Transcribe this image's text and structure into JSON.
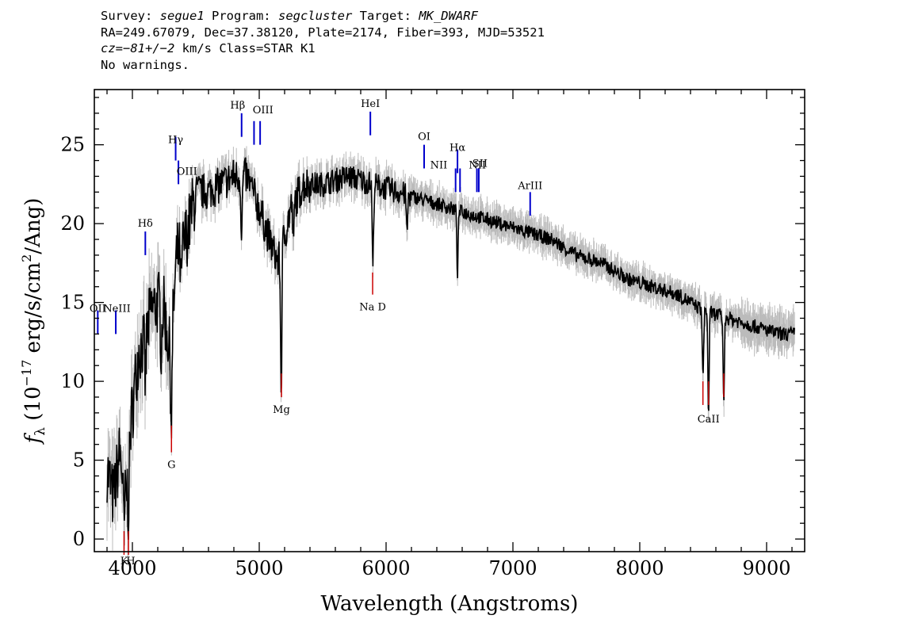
{
  "header": {
    "line1": {
      "survey_label": "Survey: ",
      "survey_value": "segue1",
      "program_label": " Program: ",
      "program_value": "segcluster",
      "target_label": " Target: ",
      "target_value": "MK_DWARF"
    },
    "line2": "RA=249.67079, Dec=37.38120, Plate=2174, Fiber=393, MJD=53521",
    "line3": {
      "cz_label": "cz=",
      "cz_value": "−81+/−2",
      "cz_suffix": " km/s Class=STAR K1"
    },
    "line4": "No warnings."
  },
  "chart_data": {
    "type": "line",
    "xlabel": "Wavelength (Angstroms)",
    "ylabel_prefix": "f",
    "ylabel_sub": "λ",
    "ylabel_rest": " (10",
    "ylabel_exp": "−17",
    "ylabel_tail": " erg/s/cm",
    "ylabel_exp2": "2",
    "ylabel_end": "/Ang)",
    "xlim": [
      3700,
      9300
    ],
    "ylim": [
      -0.8,
      28.5
    ],
    "xticks": [
      4000,
      5000,
      6000,
      7000,
      8000,
      9000
    ],
    "yticks": [
      0,
      5,
      10,
      15,
      20,
      25
    ],
    "colors": {
      "flux": "#000000",
      "error": "#bbbbbb",
      "emission": "#0000cc",
      "absorption": "#cc0000"
    },
    "spectrum_anchors": [
      [
        3800,
        4.5
      ],
      [
        3850,
        2.5
      ],
      [
        3900,
        5.5
      ],
      [
        3950,
        2.5
      ],
      [
        3990,
        7.5
      ],
      [
        4050,
        12.0
      ],
      [
        4100,
        12.5
      ],
      [
        4150,
        14.5
      ],
      [
        4200,
        15.0
      ],
      [
        4250,
        14.5
      ],
      [
        4300,
        11.5
      ],
      [
        4350,
        18.0
      ],
      [
        4400,
        18.5
      ],
      [
        4450,
        20.0
      ],
      [
        4500,
        22.0
      ],
      [
        4600,
        22.0
      ],
      [
        4700,
        22.5
      ],
      [
        4800,
        23.0
      ],
      [
        4900,
        23.0
      ],
      [
        5000,
        21.0
      ],
      [
        5100,
        18.5
      ],
      [
        5150,
        17.5
      ],
      [
        5250,
        21.0
      ],
      [
        5350,
        22.5
      ],
      [
        5500,
        22.5
      ],
      [
        5700,
        23.0
      ],
      [
        5900,
        22.5
      ],
      [
        6100,
        22.0
      ],
      [
        6300,
        21.5
      ],
      [
        6500,
        21.0
      ],
      [
        6700,
        20.5
      ],
      [
        6900,
        20.0
      ],
      [
        7100,
        19.5
      ],
      [
        7300,
        19.0
      ],
      [
        7500,
        18.0
      ],
      [
        7700,
        17.5
      ],
      [
        7900,
        16.5
      ],
      [
        8100,
        16.0
      ],
      [
        8300,
        15.5
      ],
      [
        8500,
        14.5
      ],
      [
        8700,
        14.0
      ],
      [
        8900,
        13.5
      ],
      [
        9100,
        13.0
      ],
      [
        9200,
        13.0
      ]
    ],
    "absorption_dips": [
      [
        3934,
        -3.0
      ],
      [
        3969,
        -3.0
      ],
      [
        4102,
        -2.5
      ],
      [
        4227,
        -2.5
      ],
      [
        4308,
        -5.0
      ],
      [
        4384,
        -2.5
      ],
      [
        4861,
        -4.0
      ],
      [
        5173,
        -9.0
      ],
      [
        5270,
        -2.5
      ],
      [
        5896,
        -5.5
      ],
      [
        6165,
        -2.5
      ],
      [
        6563,
        -4.0
      ],
      [
        8498,
        -4.5
      ],
      [
        8542,
        -6.5
      ],
      [
        8662,
        -5.5
      ]
    ],
    "emission_lines": [
      {
        "label": "OII",
        "wave": 3727,
        "y": 13.0,
        "lx": 3727,
        "ly": 14.4
      },
      {
        "label": "NeIII",
        "wave": 3869,
        "y": 13.0,
        "lx": 3878,
        "ly": 14.4
      },
      {
        "label": "Hδ",
        "wave": 4102,
        "y": 18.0,
        "lx": 4102,
        "ly": 19.8
      },
      {
        "label": "Hγ",
        "wave": 4341,
        "y": 24.0,
        "lx": 4341,
        "ly": 25.1
      },
      {
        "label": "OIII",
        "wave": 4363,
        "y": 22.5,
        "lx": 4430,
        "ly": 23.1
      },
      {
        "label": "Hβ",
        "wave": 4861,
        "y": 25.5,
        "lx": 4830,
        "ly": 27.3
      },
      {
        "label": "OIII",
        "wave": 4959,
        "y": 25.0,
        "lx": 5030,
        "ly": 27.0
      },
      {
        "label": "OIII",
        "wave": 5007,
        "y": 25.0,
        "lx": null,
        "ly": null
      },
      {
        "label": "HeI",
        "wave": 5876,
        "y": 25.6,
        "lx": 5876,
        "ly": 27.4
      },
      {
        "label": "OI",
        "wave": 6300,
        "y": 23.5,
        "lx": 6300,
        "ly": 25.3
      },
      {
        "label": "NII",
        "wave": 6548,
        "y": 22.0,
        "lx": 6415,
        "ly": 23.5
      },
      {
        "label": "Hα",
        "wave": 6563,
        "y": 23.2,
        "lx": 6563,
        "ly": 24.6
      },
      {
        "label": "NII",
        "wave": 6583,
        "y": 22.0,
        "lx": null,
        "ly": null
      },
      {
        "label": "NII",
        "wave": 6716,
        "y": 22.0,
        "lx": 6720,
        "ly": 23.5
      },
      {
        "label": "SII",
        "wave": 6731,
        "y": 22.0,
        "lx": 6740,
        "ly": 23.6
      },
      {
        "label": "ArIII",
        "wave": 7136,
        "y": 20.5,
        "lx": 7136,
        "ly": 22.2
      }
    ],
    "absorption_lines": [
      {
        "label": "K",
        "wave": 3934,
        "y1": 0.5,
        "y2": -1.0,
        "lx": 3935,
        "ly": -1.6
      },
      {
        "label": "H",
        "wave": 3969,
        "y1": 0.5,
        "y2": -1.0,
        "lx": 3988,
        "ly": -1.6
      },
      {
        "label": "G",
        "wave": 4308,
        "y1": 5.5,
        "y2": 7.2,
        "lx": 4308,
        "ly": 4.5
      },
      {
        "label": "Mg",
        "wave": 5175,
        "y1": 9.0,
        "y2": 10.5,
        "lx": 5175,
        "ly": 8.0
      },
      {
        "label": "Na D",
        "wave": 5894,
        "y1": 15.5,
        "y2": 16.9,
        "lx": 5894,
        "ly": 14.5
      },
      {
        "label": "CaII",
        "wave": 8498,
        "y1": 8.5,
        "y2": 10.0,
        "lx": 8542,
        "ly": 7.4
      },
      {
        "label": "CaII",
        "wave": 8542,
        "y1": 8.5,
        "y2": 10.0,
        "lx": null,
        "ly": null
      },
      {
        "label": "CaII",
        "wave": 8662,
        "y1": 9.0,
        "y2": 10.5,
        "lx": null,
        "ly": null
      }
    ]
  }
}
